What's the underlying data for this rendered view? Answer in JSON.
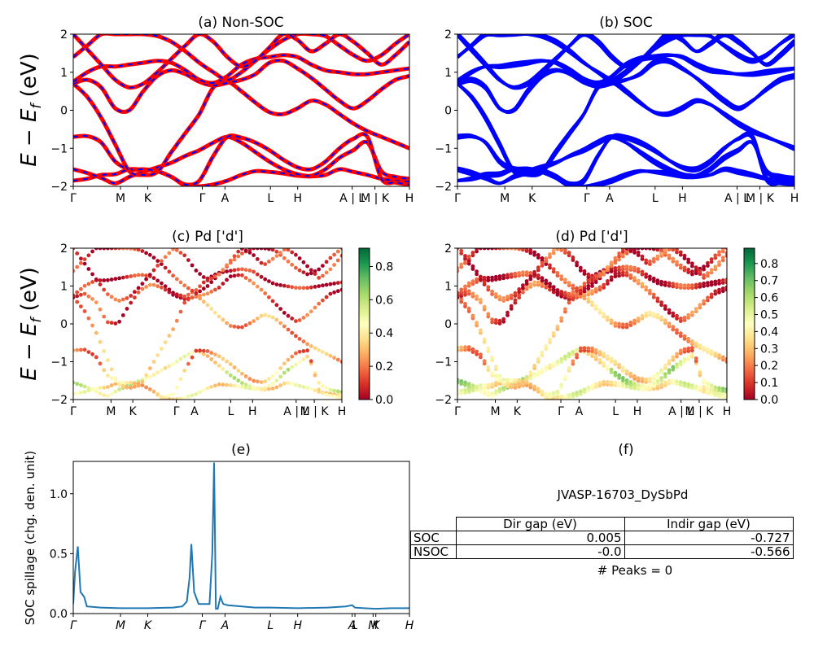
{
  "colors": {
    "soc": "#0000ff",
    "nonsoc": "#ff0000",
    "spillage": "#1f77b4"
  },
  "panels": {
    "a": {
      "title": "(a) Non-SOC",
      "ylabel": "E − E_f (eV)"
    },
    "b": {
      "title": "(b) SOC"
    },
    "c": {
      "title": "(c)  Pd ['d']",
      "ylabel": "E − E_f (eV)"
    },
    "d": {
      "title": "(d) Pd ['d']"
    },
    "e": {
      "title": "(e)",
      "ylabel": "SOC spillage (chg. den. unit)"
    },
    "f": {
      "title": "(f)"
    }
  },
  "kpath_labels_roman": [
    "Γ",
    "M",
    "K",
    "Γ",
    "A",
    "L",
    "H",
    "A | L",
    "M | K",
    "H"
  ],
  "kpath_labels_italic": [
    "Γ",
    "M",
    "K",
    "Γ",
    "A",
    "L",
    "H",
    "A",
    "L",
    "M",
    "K",
    "H"
  ],
  "colorbar_c": {
    "ticks": [
      "0.0",
      "0.2",
      "0.4",
      "0.6",
      "0.8"
    ],
    "max": 0.91,
    "colormap": "RdYlGn"
  },
  "colorbar_d": {
    "ticks": [
      "0.0",
      "0.1",
      "0.2",
      "0.3",
      "0.4",
      "0.5",
      "0.6",
      "0.7",
      "0.8"
    ],
    "max": 0.89,
    "colormap": "RdYlGn"
  },
  "table": {
    "title": "JVASP-16703_DySbPd",
    "headers": [
      "Dir gap (eV)",
      "Indir gap (eV)"
    ],
    "rows": [
      {
        "label": "SOC",
        "dir": "0.005",
        "indir": "-0.727"
      },
      {
        "label": "NSOC",
        "dir": "-0.0",
        "indir": "-0.566"
      }
    ],
    "peaks": "# Peaks = 0"
  },
  "chart_data": [
    {
      "type": "line",
      "title": "(a) Non-SOC",
      "ylabel": "E − E_f (eV)",
      "ylim": [
        -2,
        2
      ],
      "yticks": [
        "−2",
        "−1",
        "0",
        "1",
        "2"
      ],
      "xticks": [
        "Γ",
        "M",
        "K",
        "Γ",
        "A",
        "L",
        "H",
        "A | L",
        "M | K",
        "H"
      ],
      "xtick_positions": [
        0,
        0.52,
        0.82,
        1.42,
        1.67,
        2.17,
        2.47,
        3.07,
        3.32,
        3.7
      ],
      "series_colors": [
        "#ff0000",
        "#0000ff"
      ],
      "bands": [
        [
          -1.85,
          -1.8,
          -1.7,
          -1.68,
          -1.55,
          -1.57,
          -1.6,
          -1.75,
          -1.98,
          -2.0,
          -1.95,
          -1.85,
          -1.7,
          -1.6,
          -1.62,
          -1.66,
          -1.72,
          -1.74,
          -1.7,
          -1.55,
          -1.62,
          -1.7,
          -1.8,
          -1.85,
          -1.88
        ],
        [
          -1.55,
          -1.65,
          -1.78,
          -1.92,
          -1.75,
          -1.62,
          -1.5,
          -1.38,
          -1.2,
          -1.05,
          -0.85,
          -0.7,
          -0.85,
          -1.1,
          -1.35,
          -1.55,
          -1.68,
          -1.72,
          -1.55,
          -1.25,
          -1.05,
          -0.85,
          -1.6,
          -1.75,
          -1.8
        ],
        [
          -0.7,
          -0.68,
          -0.85,
          -1.35,
          -1.55,
          -1.55,
          -1.6,
          -1.75,
          -1.95,
          -1.85,
          -1.2,
          -0.7,
          -0.72,
          -0.85,
          -1.05,
          -1.3,
          -1.5,
          -1.55,
          -1.35,
          -1.0,
          -0.75,
          -0.7,
          -1.8,
          -1.9,
          -1.95
        ],
        [
          0.7,
          0.35,
          -0.2,
          -0.9,
          -1.6,
          -1.7,
          -1.62,
          -1.1,
          -0.6,
          -0.1,
          0.6,
          0.75,
          0.5,
          0.2,
          -0.05,
          -0.1,
          0.05,
          0.25,
          0.15,
          -0.1,
          -0.35,
          -0.55,
          -0.7,
          -0.85,
          -1.0
        ],
        [
          0.7,
          0.8,
          0.6,
          0.05,
          0.0,
          0.5,
          0.9,
          1.05,
          0.95,
          0.75,
          0.65,
          0.72,
          0.8,
          0.95,
          1.25,
          1.3,
          1.1,
          0.85,
          0.55,
          0.25,
          0.05,
          0.25,
          0.55,
          0.8,
          0.9
        ],
        [
          0.75,
          1.0,
          1.15,
          1.15,
          1.2,
          1.25,
          1.3,
          1.25,
          1.05,
          0.8,
          0.72,
          0.9,
          1.2,
          1.35,
          1.4,
          1.45,
          1.4,
          1.2,
          1.05,
          1.0,
          0.95,
          0.95,
          1.0,
          1.05,
          1.1
        ],
        [
          1.4,
          1.7,
          2.0,
          2.0,
          2.0,
          2.0,
          1.95,
          1.8,
          1.55,
          1.25,
          1.0,
          0.8,
          1.0,
          1.3,
          1.6,
          1.85,
          2.0,
          2.0,
          1.95,
          1.7,
          1.45,
          1.3,
          1.45,
          1.75,
          2.0
        ],
        [
          2.0,
          1.6,
          1.2,
          0.8,
          0.6,
          0.7,
          1.0,
          1.35,
          1.7,
          2.0,
          1.8,
          1.4,
          1.15,
          1.3,
          1.65,
          2.0,
          1.85,
          1.55,
          1.75,
          2.0,
          1.8,
          1.5,
          1.2,
          1.45,
          1.8
        ]
      ]
    },
    {
      "type": "line",
      "title": "(b) SOC",
      "ylim": [
        -2,
        2
      ],
      "yticks": [
        "−2",
        "−1",
        "0",
        "1",
        "2"
      ],
      "xticks": [
        "Γ",
        "M",
        "K",
        "Γ",
        "A",
        "L",
        "H",
        "A | L",
        "M | K",
        "H"
      ],
      "xtick_positions": [
        0,
        0.52,
        0.82,
        1.42,
        1.67,
        2.17,
        2.47,
        3.07,
        3.32,
        3.7
      ],
      "series_colors": [
        "#0000ff"
      ],
      "bands_same_as": "(a) Non-SOC, spin-orbit split into closely spaced pairs"
    },
    {
      "type": "scatter",
      "title": "(c)  Pd ['d']",
      "ylabel": "E − E_f (eV)",
      "ylim": [
        -2,
        2
      ],
      "xticks": [
        "Γ",
        "M",
        "K",
        "Γ",
        "A",
        "L",
        "H",
        "A | L",
        "M | K",
        "H"
      ],
      "xtick_positions": [
        0,
        0.52,
        0.82,
        1.42,
        1.67,
        2.17,
        2.47,
        3.07,
        3.32,
        3.7
      ],
      "color_scale": [
        0,
        0.91
      ],
      "band_weights": [
        0.28,
        0.4,
        0.22,
        0.25,
        0.12,
        0.06,
        0.08,
        0.1
      ]
    },
    {
      "type": "scatter",
      "title": "(d) Pd ['d']",
      "ylim": [
        -2,
        2
      ],
      "xticks": [
        "Γ",
        "M",
        "K",
        "Γ",
        "A",
        "L",
        "H",
        "A | L",
        "M | K",
        "H"
      ],
      "xtick_positions": [
        0,
        0.52,
        0.82,
        1.42,
        1.67,
        2.17,
        2.47,
        3.07,
        3.32,
        3.7
      ],
      "color_scale": [
        0,
        0.89
      ],
      "band_weights": [
        0.3,
        0.42,
        0.24,
        0.26,
        0.12,
        0.06,
        0.08,
        0.1
      ]
    },
    {
      "type": "line",
      "title": "(e)",
      "ylabel": "SOC spillage (chg. den. unit)",
      "ylim": [
        0,
        1.27
      ],
      "yticks": [
        "0.0",
        "0.5",
        "1.0"
      ],
      "xticks": [
        "Γ",
        "M",
        "K",
        "Γ",
        "A",
        "L",
        "H",
        "A",
        "L",
        "M",
        "K",
        "H"
      ],
      "xtick_positions": [
        0,
        0.52,
        0.82,
        1.42,
        1.67,
        2.17,
        2.47,
        3.07,
        3.1,
        3.3,
        3.33,
        3.7
      ],
      "x": [
        0.0,
        0.02,
        0.05,
        0.08,
        0.12,
        0.15,
        0.3,
        0.52,
        0.82,
        1.0,
        1.1,
        1.2,
        1.25,
        1.28,
        1.3,
        1.33,
        1.38,
        1.5,
        1.53,
        1.55,
        1.57,
        1.59,
        1.62,
        1.65,
        1.7,
        2.0,
        2.17,
        2.47,
        2.8,
        3.0,
        3.07,
        3.1,
        3.2,
        3.33,
        3.5,
        3.7
      ],
      "y": [
        0.08,
        0.35,
        0.56,
        0.18,
        0.14,
        0.06,
        0.05,
        0.045,
        0.045,
        0.048,
        0.05,
        0.06,
        0.1,
        0.3,
        0.58,
        0.18,
        0.08,
        0.08,
        0.5,
        1.26,
        0.04,
        0.04,
        0.14,
        0.08,
        0.07,
        0.05,
        0.05,
        0.045,
        0.05,
        0.06,
        0.07,
        0.05,
        0.045,
        0.04,
        0.045,
        0.045
      ]
    }
  ]
}
